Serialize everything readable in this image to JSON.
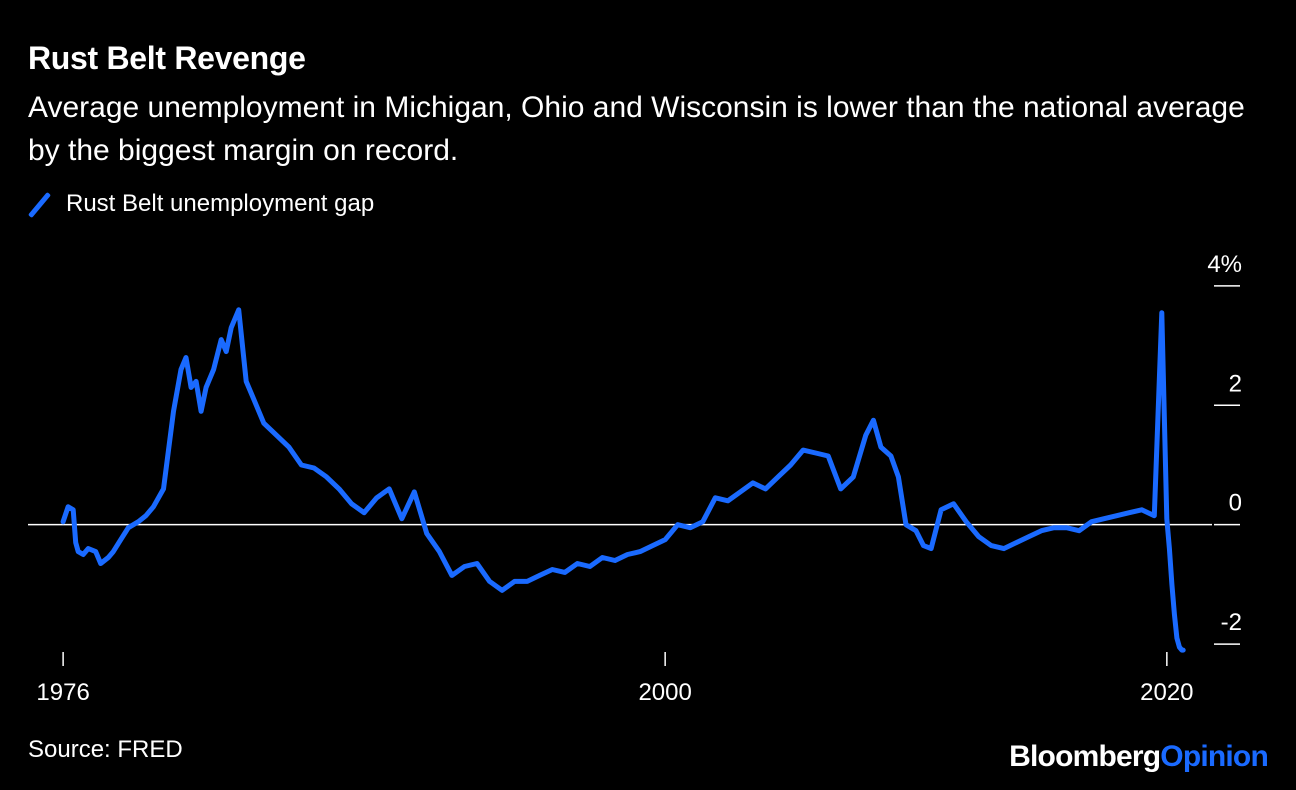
{
  "header": {
    "title": "Rust Belt Revenge",
    "subtitle": "Average unemployment in Michigan, Ohio and Wisconsin is lower than the national average by the biggest margin on record."
  },
  "footer": {
    "source": "Source: FRED",
    "brand_primary": "Bloomberg",
    "brand_secondary": "Opinion"
  },
  "colors": {
    "background": "#000000",
    "series": "#1a6aff",
    "text": "#ffffff",
    "zero_line": "#ffffff"
  },
  "chart_data": {
    "type": "line",
    "title": "Rust Belt Revenge",
    "legend_position": "top-left",
    "grid": false,
    "xlim": [
      1974.6,
      2021.8
    ],
    "ylim": [
      -2.3,
      4.4
    ],
    "x_ticks": [
      {
        "value": 1976,
        "label": "1976"
      },
      {
        "value": 2000,
        "label": "2000"
      },
      {
        "value": 2020,
        "label": "2020"
      }
    ],
    "y_ticks": [
      {
        "value": 4,
        "label": "4%"
      },
      {
        "value": 2,
        "label": "2"
      },
      {
        "value": 0,
        "label": "0"
      },
      {
        "value": -2,
        "label": "-2"
      }
    ],
    "series": [
      {
        "name": "Rust Belt unemployment gap",
        "color": "#1a6aff",
        "x": [
          1976.0,
          1976.2,
          1976.4,
          1976.5,
          1976.6,
          1976.8,
          1977.0,
          1977.3,
          1977.5,
          1977.8,
          1978.0,
          1978.3,
          1978.6,
          1979.0,
          1979.3,
          1979.6,
          1980.0,
          1980.4,
          1980.7,
          1980.9,
          1981.1,
          1981.3,
          1981.5,
          1981.7,
          1982.0,
          1982.3,
          1982.5,
          1982.7,
          1983.0,
          1983.3,
          1983.6,
          1984.0,
          1984.5,
          1985.0,
          1985.5,
          1986.0,
          1986.5,
          1987.0,
          1987.5,
          1988.0,
          1988.5,
          1989.0,
          1989.5,
          1990.0,
          1990.5,
          1991.0,
          1991.5,
          1992.0,
          1992.5,
          1993.0,
          1993.5,
          1994.0,
          1994.5,
          1995.0,
          1995.5,
          1996.0,
          1996.5,
          1997.0,
          1997.5,
          1998.0,
          1998.5,
          1999.0,
          1999.5,
          2000.0,
          2000.5,
          2001.0,
          2001.5,
          2002.0,
          2002.5,
          2003.0,
          2003.5,
          2004.0,
          2004.5,
          2005.0,
          2005.5,
          2006.0,
          2006.5,
          2007.0,
          2007.5,
          2008.0,
          2008.3,
          2008.6,
          2009.0,
          2009.3,
          2009.6,
          2010.0,
          2010.3,
          2010.6,
          2011.0,
          2011.5,
          2012.0,
          2012.5,
          2013.0,
          2013.5,
          2014.0,
          2014.5,
          2015.0,
          2015.5,
          2016.0,
          2016.5,
          2017.0,
          2017.5,
          2018.0,
          2018.5,
          2019.0,
          2019.5,
          2019.8,
          2020.0,
          2020.1,
          2020.2,
          2020.3,
          2020.4,
          2020.5,
          2020.6,
          2020.65
        ],
        "values": [
          0.05,
          0.3,
          0.25,
          -0.3,
          -0.45,
          -0.5,
          -0.4,
          -0.45,
          -0.65,
          -0.55,
          -0.45,
          -0.25,
          -0.05,
          0.05,
          0.15,
          0.3,
          0.6,
          1.9,
          2.6,
          2.8,
          2.3,
          2.4,
          1.9,
          2.3,
          2.6,
          3.1,
          2.9,
          3.3,
          3.6,
          2.4,
          2.1,
          1.7,
          1.5,
          1.3,
          1.0,
          0.95,
          0.8,
          0.6,
          0.35,
          0.2,
          0.45,
          0.6,
          0.1,
          0.55,
          -0.15,
          -0.45,
          -0.85,
          -0.7,
          -0.65,
          -0.95,
          -1.1,
          -0.95,
          -0.95,
          -0.85,
          -0.75,
          -0.8,
          -0.65,
          -0.7,
          -0.55,
          -0.6,
          -0.5,
          -0.45,
          -0.35,
          -0.25,
          0.0,
          -0.05,
          0.05,
          0.45,
          0.4,
          0.55,
          0.7,
          0.6,
          0.8,
          1.0,
          1.25,
          1.2,
          1.15,
          0.6,
          0.8,
          1.5,
          1.75,
          1.3,
          1.15,
          0.8,
          0.0,
          -0.1,
          -0.35,
          -0.4,
          0.25,
          0.35,
          0.05,
          -0.2,
          -0.35,
          -0.4,
          -0.3,
          -0.2,
          -0.1,
          -0.05,
          -0.05,
          -0.1,
          0.05,
          0.1,
          0.15,
          0.2,
          0.25,
          0.15,
          3.55,
          0.1,
          -0.4,
          -1.0,
          -1.5,
          -1.9,
          -2.05,
          -2.1,
          -2.1
        ]
      }
    ]
  }
}
